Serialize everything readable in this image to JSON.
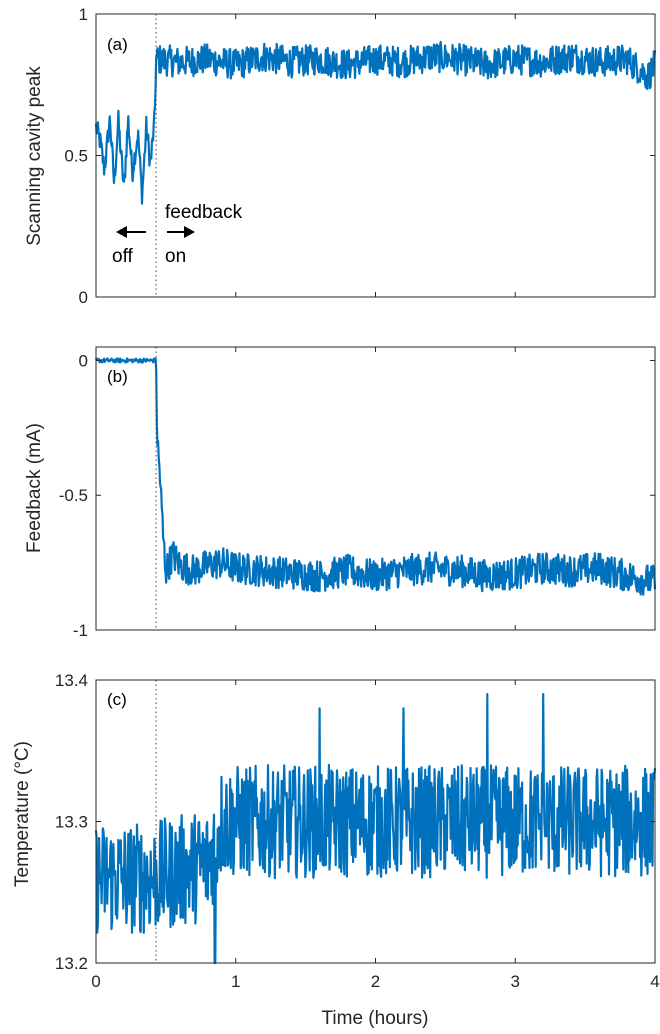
{
  "colors": {
    "series": "#0072bd",
    "axes": "#262626"
  },
  "chart_data": [
    {
      "type": "line",
      "panel_label": "(a)",
      "ylabel": "Scanning cavity peak",
      "xlabel": "",
      "xlim": [
        0,
        4
      ],
      "ylim": [
        0,
        1
      ],
      "xticks": [
        0,
        1,
        2,
        3,
        4
      ],
      "yticks": [
        0,
        0.5,
        1
      ],
      "ytick_labels": [
        "0",
        "0.5",
        "1"
      ],
      "feedback_on_time": 0.43,
      "annotations": {
        "feedback": "feedback",
        "off": "off",
        "on": "on"
      },
      "series": [
        {
          "x": [
            0,
            0.03,
            0.06,
            0.1,
            0.13,
            0.16,
            0.2,
            0.23,
            0.26,
            0.3,
            0.33,
            0.36,
            0.39,
            0.42,
            0.43,
            0.6,
            0.8,
            1.0,
            1.2,
            1.4,
            1.6,
            1.8,
            2.0,
            2.2,
            2.4,
            2.6,
            2.8,
            3.0,
            3.2,
            3.4,
            3.6,
            3.8,
            3.95,
            4.0
          ],
          "y": [
            0.6,
            0.55,
            0.45,
            0.63,
            0.4,
            0.62,
            0.38,
            0.63,
            0.44,
            0.58,
            0.36,
            0.6,
            0.47,
            0.63,
            0.84,
            0.83,
            0.84,
            0.82,
            0.85,
            0.83,
            0.84,
            0.82,
            0.84,
            0.83,
            0.85,
            0.84,
            0.82,
            0.84,
            0.83,
            0.85,
            0.83,
            0.84,
            0.78,
            0.82
          ],
          "band": 0.055
        }
      ]
    },
    {
      "type": "line",
      "panel_label": "(b)",
      "ylabel": "Feedback (mA)",
      "xlabel": "",
      "xlim": [
        0,
        4
      ],
      "ylim": [
        -1,
        0.05
      ],
      "xticks": [
        0,
        1,
        2,
        3,
        4
      ],
      "yticks": [
        -1,
        -0.5,
        0
      ],
      "ytick_labels": [
        "-1",
        "-0.5",
        "0"
      ],
      "feedback_on_time": 0.43,
      "series": [
        {
          "x": [
            0,
            0.43,
            0.435,
            0.44,
            0.46,
            0.48,
            0.5,
            0.55,
            0.6,
            0.7,
            0.8,
            0.9,
            1.0,
            1.2,
            1.4,
            1.6,
            1.8,
            2.0,
            2.2,
            2.4,
            2.6,
            2.8,
            3.0,
            3.2,
            3.4,
            3.6,
            3.8,
            4.0
          ],
          "y": [
            0,
            0,
            -0.2,
            -0.3,
            -0.45,
            -0.65,
            -0.78,
            -0.72,
            -0.76,
            -0.78,
            -0.76,
            -0.75,
            -0.77,
            -0.78,
            -0.79,
            -0.8,
            -0.78,
            -0.8,
            -0.78,
            -0.77,
            -0.78,
            -0.8,
            -0.79,
            -0.77,
            -0.78,
            -0.77,
            -0.8,
            -0.82
          ],
          "band": 0.06
        }
      ]
    },
    {
      "type": "line",
      "panel_label": "(c)",
      "ylabel": "Temperature (°C)",
      "xlabel": "Time (hours)",
      "xlim": [
        0,
        4
      ],
      "ylim": [
        13.2,
        13.4
      ],
      "xticks": [
        0,
        1,
        2,
        3,
        4
      ],
      "yticks": [
        13.2,
        13.3,
        13.4
      ],
      "ytick_labels": [
        "13.2",
        "13.3",
        "13.4"
      ],
      "feedback_on_time": 0.43,
      "series": [
        {
          "x": [
            0,
            0.2,
            0.4,
            0.6,
            0.8,
            0.9,
            1.0,
            1.5,
            2.0,
            2.5,
            3.0,
            3.5,
            4.0
          ],
          "y": [
            13.26,
            13.26,
            13.26,
            13.265,
            13.27,
            13.3,
            13.3,
            13.3,
            13.3,
            13.3,
            13.3,
            13.3,
            13.3
          ],
          "band": 0.04,
          "spikes": [
            {
              "x": 0.85,
              "y": 13.2
            },
            {
              "x": 1.6,
              "y": 13.38
            },
            {
              "x": 2.2,
              "y": 13.38
            },
            {
              "x": 2.8,
              "y": 13.39
            },
            {
              "x": 3.2,
              "y": 13.39
            }
          ]
        }
      ]
    }
  ]
}
